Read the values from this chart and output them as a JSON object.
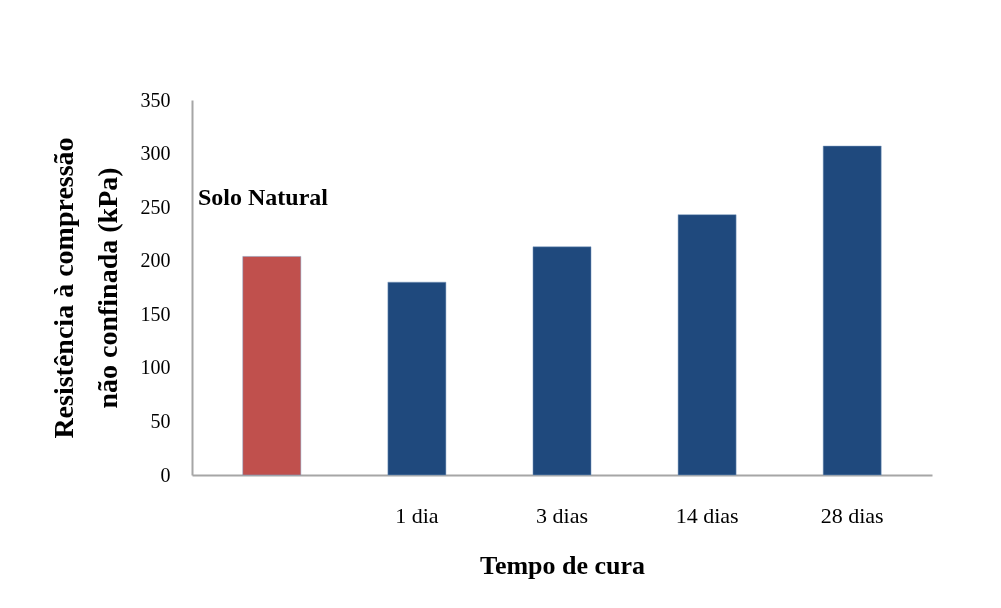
{
  "chart_data": {
    "type": "bar",
    "xlabel": "Tempo de cura",
    "ylabel": "Resistência à compressão não confinada (kPa)",
    "categories": [
      null,
      "1 dia",
      "3 dias",
      "14 dias",
      "28 dias"
    ],
    "values": [
      204,
      180,
      213,
      243,
      307
    ],
    "colors": [
      "#c0504d",
      "#1f497d",
      "#1f497d",
      "#1f497d",
      "#1f497d"
    ],
    "ylim": [
      0,
      350
    ],
    "yticks": [
      0,
      50,
      100,
      150,
      200,
      250,
      300,
      350
    ],
    "annotations": [
      "Solo Natural"
    ],
    "grid": false,
    "legend": false
  }
}
